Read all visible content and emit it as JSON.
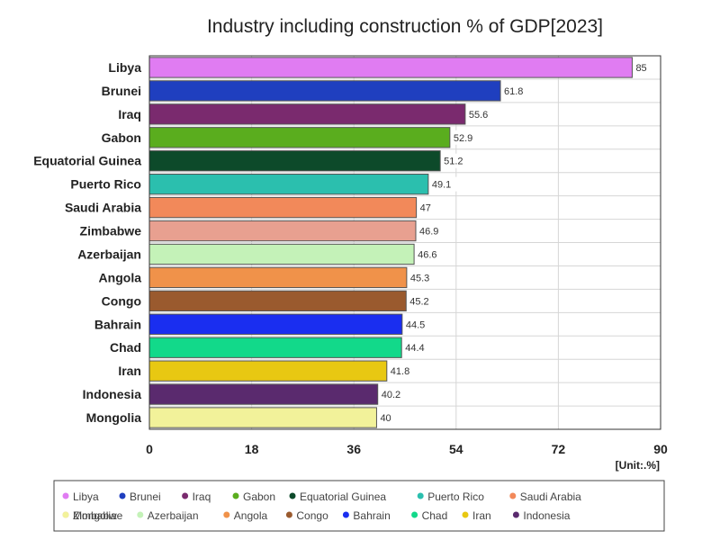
{
  "chart_data": {
    "type": "bar",
    "orientation": "horizontal",
    "title": "Industry including construction % of GDP[2023]",
    "unit_label": "[Unit:.%]",
    "xlim": [
      0,
      90
    ],
    "xticks": [
      0,
      18,
      36,
      54,
      72,
      90
    ],
    "grid": true,
    "legend_position": "bottom",
    "categories": [
      "Libya",
      "Brunei",
      "Iraq",
      "Gabon",
      "Equatorial Guinea",
      "Puerto Rico",
      "Saudi Arabia",
      "Zimbabwe",
      "Azerbaijan",
      "Angola",
      "Congo",
      "Bahrain",
      "Chad",
      "Iran",
      "Indonesia",
      "Mongolia"
    ],
    "values": [
      85,
      61.8,
      55.6,
      52.9,
      51.2,
      49.1,
      47,
      46.9,
      46.6,
      45.3,
      45.2,
      44.5,
      44.4,
      41.8,
      40.2,
      40
    ],
    "colors": [
      "#e07cf2",
      "#1f3fbf",
      "#7a2a6e",
      "#5aad1e",
      "#0d4a2a",
      "#2bbfae",
      "#f2895a",
      "#e8a090",
      "#c4f2b8",
      "#f0924a",
      "#9a5a2e",
      "#1a2ef0",
      "#12d98a",
      "#e8c812",
      "#5a2a6e",
      "#f2f29a"
    ]
  }
}
